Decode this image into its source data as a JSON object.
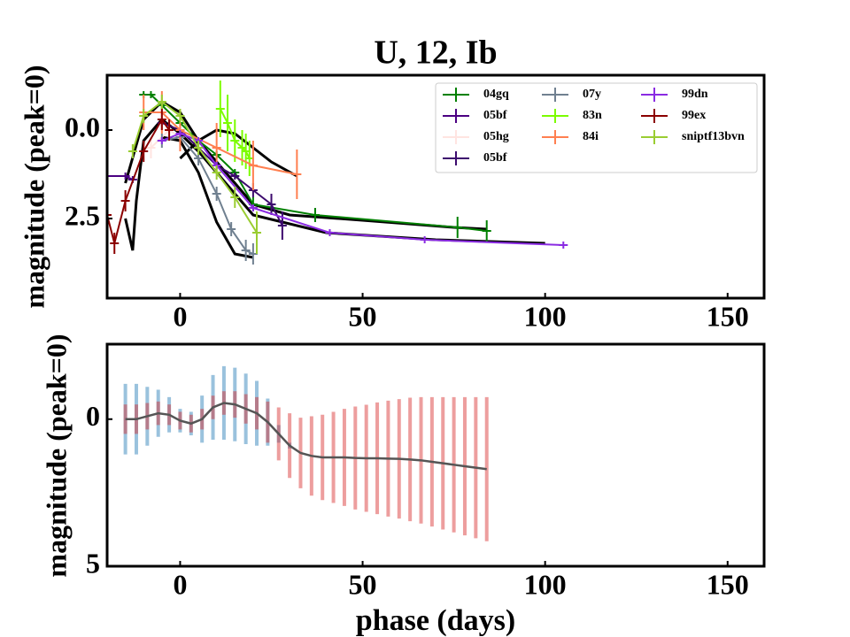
{
  "chart_data": [
    {
      "type": "errorbar",
      "title": "U, 12, Ib",
      "ylabel": "magnitude (peak=0)",
      "xlim": [
        -20,
        160
      ],
      "ylim": [
        4.75,
        -1.55
      ],
      "xticks": [
        0,
        50,
        100,
        150
      ],
      "yticks": [
        {
          "value": 0,
          "label": "0.0"
        },
        {
          "value": 2.5,
          "label": "2.5"
        }
      ],
      "legend": "upper right",
      "series": [
        {
          "name": "04gq",
          "color": "#008000",
          "x": [
            -10,
            -8,
            -5,
            0,
            5,
            10,
            15,
            20,
            37,
            76,
            84
          ],
          "values": [
            -1.0,
            -1.0,
            -0.7,
            -0.2,
            0.3,
            0.7,
            1.2,
            2.1,
            2.4,
            2.75,
            2.85
          ],
          "err": [
            0.1,
            0.1,
            0.1,
            0.1,
            0.1,
            0.1,
            0.1,
            0.2,
            0.2,
            0.3,
            0.3
          ]
        },
        {
          "name": "05bf",
          "color": "#4b0082",
          "x": [
            -20,
            -15,
            -13
          ],
          "values": [
            1.3,
            1.3,
            1.4
          ],
          "err": [
            0.1,
            0.1,
            0.1
          ]
        },
        {
          "name": "05hg",
          "color": "#ffe4e1",
          "x": [
            -8,
            -3,
            0
          ],
          "values": [
            0.5,
            0.0,
            0.2
          ],
          "err": [
            0.3,
            0.3,
            0.3
          ]
        },
        {
          "name": "05bf",
          "color": "#3c0a6e",
          "x": [
            -5,
            0,
            5,
            10,
            15,
            20,
            25,
            28
          ],
          "values": [
            -0.2,
            0.0,
            0.5,
            1.0,
            1.3,
            1.7,
            2.1,
            2.7
          ],
          "err": [
            0.1,
            0.1,
            0.1,
            0.1,
            0.1,
            0.2,
            0.3,
            0.4
          ]
        },
        {
          "name": "07y",
          "color": "#708090",
          "x": [
            -5,
            0,
            5,
            10,
            14,
            18,
            20
          ],
          "values": [
            0.3,
            0.2,
            0.8,
            1.8,
            2.8,
            3.4,
            3.5
          ],
          "err": [
            0.2,
            0.2,
            0.2,
            0.2,
            0.2,
            0.3,
            0.3
          ]
        },
        {
          "name": "83n",
          "color": "#7cfc00",
          "x": [
            11,
            13,
            15,
            17,
            18,
            19
          ],
          "values": [
            -0.6,
            -0.2,
            0.3,
            0.5,
            0.6,
            0.8
          ],
          "err": [
            0.8,
            0.8,
            0.6,
            0.5,
            0.5,
            0.5
          ]
        },
        {
          "name": "84i",
          "color": "#ff7f50",
          "x": [
            -10,
            -5,
            0,
            10,
            20,
            32
          ],
          "values": [
            -0.5,
            -0.5,
            0.0,
            0.5,
            1.0,
            1.25
          ],
          "err": [
            0.5,
            0.6,
            0.6,
            0.7,
            0.7,
            0.7
          ]
        },
        {
          "name": "99dn",
          "color": "#8a2be2",
          "x": [
            -5,
            0,
            5,
            10,
            20,
            41,
            67,
            105
          ],
          "values": [
            0.3,
            0.1,
            0.3,
            1.0,
            2.2,
            2.9,
            3.1,
            3.25
          ],
          "err": [
            0.1,
            0.1,
            0.1,
            0.1,
            0.1,
            0.1,
            0.1,
            0.1
          ]
        },
        {
          "name": "99ex",
          "color": "#8b0000",
          "x": [
            -20,
            -18,
            -15,
            -10,
            -5,
            -3
          ],
          "values": [
            2.4,
            3.2,
            2.0,
            0.6,
            -0.3,
            0.0
          ],
          "err": [
            0.3,
            0.3,
            0.3,
            0.3,
            0.3,
            0.3
          ]
        },
        {
          "name": "sniptf13bvn",
          "color": "#9acd32",
          "x": [
            -13,
            -10,
            -5,
            0,
            5,
            10,
            15,
            21
          ],
          "values": [
            0.6,
            -0.4,
            -0.8,
            -0.4,
            0.5,
            1.2,
            1.9,
            2.9
          ],
          "err": [
            0.2,
            0.2,
            0.2,
            0.2,
            0.2,
            0.2,
            0.3,
            0.6
          ]
        }
      ],
      "fits": [
        {
          "color": "#000000",
          "x": [
            -15,
            -10,
            -5,
            0,
            5,
            10,
            15,
            20,
            30,
            50,
            75,
            84
          ],
          "values": [
            1.5,
            -0.3,
            -0.8,
            -0.5,
            0.3,
            0.9,
            1.5,
            2.1,
            2.4,
            2.55,
            2.75,
            2.8
          ]
        },
        {
          "color": "#000000",
          "x": [
            -15,
            -13,
            -12,
            -10,
            -5,
            0,
            5,
            10,
            15,
            20,
            40,
            70,
            100
          ],
          "values": [
            2.5,
            3.4,
            2.0,
            0.3,
            -0.3,
            0.1,
            0.6,
            1.2,
            1.8,
            2.4,
            2.9,
            3.1,
            3.2
          ]
        },
        {
          "color": "#000000",
          "x": [
            -5,
            0,
            5,
            10,
            15,
            20
          ],
          "values": [
            0.2,
            0.3,
            1.2,
            2.6,
            3.5,
            3.6
          ]
        },
        {
          "color": "#000000",
          "x": [
            0,
            5,
            10,
            15,
            20,
            25,
            32
          ],
          "values": [
            0.8,
            0.3,
            0.0,
            0.1,
            0.5,
            0.9,
            1.3
          ]
        }
      ]
    },
    {
      "type": "band",
      "ylabel": "magnitude (peak=0)",
      "xlabel": "phase (days)",
      "xlim": [
        -20,
        160
      ],
      "ylim": [
        5,
        -2.55
      ],
      "xticks": [
        0,
        50,
        100,
        150
      ],
      "yticks": [
        0,
        5
      ],
      "x": [
        -15,
        -12,
        -9,
        -6,
        -3,
        0,
        3,
        6,
        9,
        12,
        15,
        18,
        21,
        24,
        27,
        30,
        33,
        36,
        39,
        42,
        45,
        48,
        51,
        54,
        57,
        60,
        63,
        66,
        69,
        72,
        75,
        78,
        81,
        84
      ],
      "mean": {
        "color": "#555555",
        "values": [
          0.0,
          0.0,
          -0.1,
          -0.2,
          -0.15,
          0.05,
          0.15,
          0.0,
          -0.4,
          -0.55,
          -0.5,
          -0.35,
          -0.2,
          0.1,
          0.5,
          0.9,
          1.15,
          1.25,
          1.3,
          1.3,
          1.3,
          1.32,
          1.33,
          1.33,
          1.34,
          1.35,
          1.37,
          1.4,
          1.45,
          1.5,
          1.55,
          1.6,
          1.65,
          1.7
        ]
      },
      "bands": [
        {
          "color": "#1f77b4",
          "values": [
            1.2,
            1.2,
            1.0,
            0.8,
            0.6,
            0.4,
            0.4,
            0.8,
            1.1,
            1.25,
            1.25,
            1.2,
            1.1,
            0.8,
            0.3,
            0.1,
            0,
            0,
            0,
            0,
            0,
            0,
            0,
            0,
            0,
            0,
            0,
            0,
            0,
            0,
            0,
            0,
            0,
            0
          ]
        },
        {
          "color": "#d62728",
          "values": [
            0.5,
            0.5,
            0.45,
            0.4,
            0.35,
            0.3,
            0.3,
            0.35,
            0.4,
            0.4,
            0.45,
            0.5,
            0.55,
            0.7,
            0.9,
            1.1,
            1.2,
            1.35,
            1.45,
            1.55,
            1.65,
            1.75,
            1.82,
            1.9,
            1.97,
            2.03,
            2.1,
            2.15,
            2.2,
            2.25,
            2.3,
            2.35,
            2.4,
            2.45
          ]
        }
      ]
    }
  ]
}
